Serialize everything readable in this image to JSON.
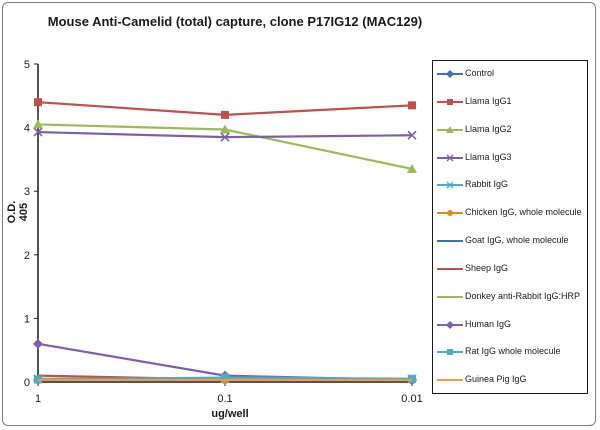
{
  "chart_data": {
    "type": "line",
    "title": "Mouse Anti-Camelid (total) capture, clone P17IG12 (MAC129)",
    "xlabel": "ug/well",
    "ylabel": "O.D. 405",
    "categories": [
      "1",
      "0.1",
      "0.01"
    ],
    "ylim": [
      0,
      5
    ],
    "yticks": [
      "0",
      "1",
      "2",
      "3",
      "4",
      "5"
    ],
    "grid": false,
    "legend_position": "right",
    "series": [
      {
        "name": "Control",
        "color": "#3f6fb6",
        "marker": "diamond",
        "values": [
          0.03,
          0.03,
          0.03
        ]
      },
      {
        "name": "Llama IgG1",
        "color": "#c0504d",
        "marker": "square",
        "values": [
          4.4,
          4.2,
          4.35
        ]
      },
      {
        "name": "Llama IgG2",
        "color": "#9bbb59",
        "marker": "triangle",
        "values": [
          4.05,
          3.97,
          3.35
        ]
      },
      {
        "name": "Llama IgG3",
        "color": "#7f5fa8",
        "marker": "x",
        "values": [
          3.93,
          3.85,
          3.88
        ]
      },
      {
        "name": "Rabbit IgG",
        "color": "#4bacc6",
        "marker": "x",
        "values": [
          0.05,
          0.05,
          0.05
        ]
      },
      {
        "name": "Chicken IgG, whole molecule",
        "color": "#e08a2c",
        "marker": "circle",
        "values": [
          0.04,
          0.03,
          0.03
        ]
      },
      {
        "name": "Goat IgG, whole molecule",
        "color": "#3f6fb6",
        "marker": "none",
        "values": [
          0.03,
          0.03,
          0.03
        ]
      },
      {
        "name": "Sheep IgG",
        "color": "#c0504d",
        "marker": "none",
        "values": [
          0.1,
          0.04,
          0.03
        ]
      },
      {
        "name": "Donkey anti-Rabbit IgG:HRP",
        "color": "#9bbb59",
        "marker": "none",
        "values": [
          0.05,
          0.04,
          0.03
        ]
      },
      {
        "name": "Human IgG",
        "color": "#7f5fa8",
        "marker": "diamond",
        "values": [
          0.6,
          0.1,
          0.03
        ]
      },
      {
        "name": "Rat IgG whole molecule",
        "color": "#4bacc6",
        "marker": "square",
        "values": [
          0.04,
          0.07,
          0.05
        ]
      },
      {
        "name": "Guinea Pig IgG",
        "color": "#f79646",
        "marker": "none",
        "values": [
          0.03,
          0.03,
          0.03
        ]
      }
    ]
  }
}
